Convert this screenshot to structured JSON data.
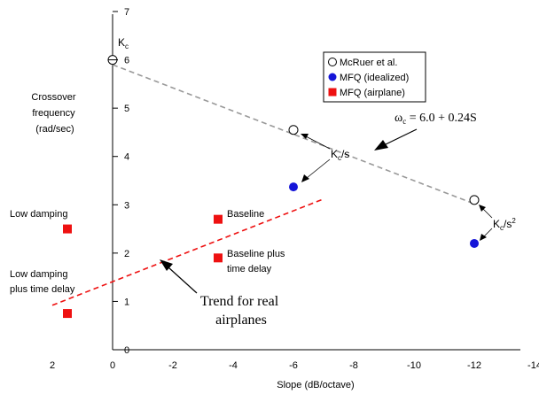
{
  "chart_data": {
    "type": "scatter",
    "xlabel": "Slope (dB/octave)",
    "ylabel": "Crossover frequency (rad/sec)",
    "ylabel_lines": [
      "Crossover",
      "frequency",
      "(rad/sec)"
    ],
    "xlim": [
      2,
      -14
    ],
    "ylim": [
      0,
      7
    ],
    "x_ticks": [
      2,
      0,
      -2,
      -4,
      -6,
      -8,
      -10,
      -12,
      -14
    ],
    "y_ticks": [
      0,
      1,
      2,
      3,
      4,
      5,
      6,
      7
    ],
    "grid": false,
    "legend_position": "top-right",
    "series": [
      {
        "name": "McRuer et al.",
        "marker": "open-circle",
        "color": "#000000",
        "points": [
          {
            "x": 0,
            "y": 6.0
          },
          {
            "x": -6,
            "y": 4.55
          },
          {
            "x": -12,
            "y": 3.1
          }
        ]
      },
      {
        "name": "MFQ (idealized)",
        "marker": "filled-circle",
        "color": "#1515d8",
        "points": [
          {
            "x": -6,
            "y": 3.37
          },
          {
            "x": -12,
            "y": 2.2
          }
        ]
      },
      {
        "name": "MFQ (airplane)",
        "marker": "square",
        "color": "#ee1111",
        "points": [
          {
            "x": 1.5,
            "y": 2.5
          },
          {
            "x": 1.5,
            "y": 0.75
          },
          {
            "x": -3.5,
            "y": 2.7
          },
          {
            "x": -3.5,
            "y": 1.9
          }
        ]
      }
    ],
    "lines": [
      {
        "label": "gray fit",
        "color": "#999999",
        "dash": true,
        "x": [
          0,
          -12
        ],
        "y": [
          5.9,
          3.02
        ]
      },
      {
        "label": "airplane trend",
        "color": "#ee1111",
        "dash": true,
        "x": [
          2,
          -7
        ],
        "y": [
          0.92,
          3.12
        ]
      }
    ],
    "equation": {
      "lhs": "ω",
      "lhs_sub": "c",
      "rhs": " = 6.0 + 0.24S"
    },
    "annotations": {
      "kc": {
        "main": "K",
        "sub": "c"
      },
      "kc_s": {
        "main": "K",
        "sub": "c",
        "rest": "/s"
      },
      "kc_s2": {
        "main": "K",
        "sub": "c",
        "rest": "/s",
        "sup": "2"
      },
      "low_damping": "Low damping",
      "low_damping_delay": [
        "Low damping",
        "plus time delay"
      ],
      "baseline": "Baseline",
      "baseline_delay": [
        "Baseline plus",
        "time delay"
      ],
      "trend": [
        "Trend for real",
        "airplanes"
      ]
    }
  }
}
